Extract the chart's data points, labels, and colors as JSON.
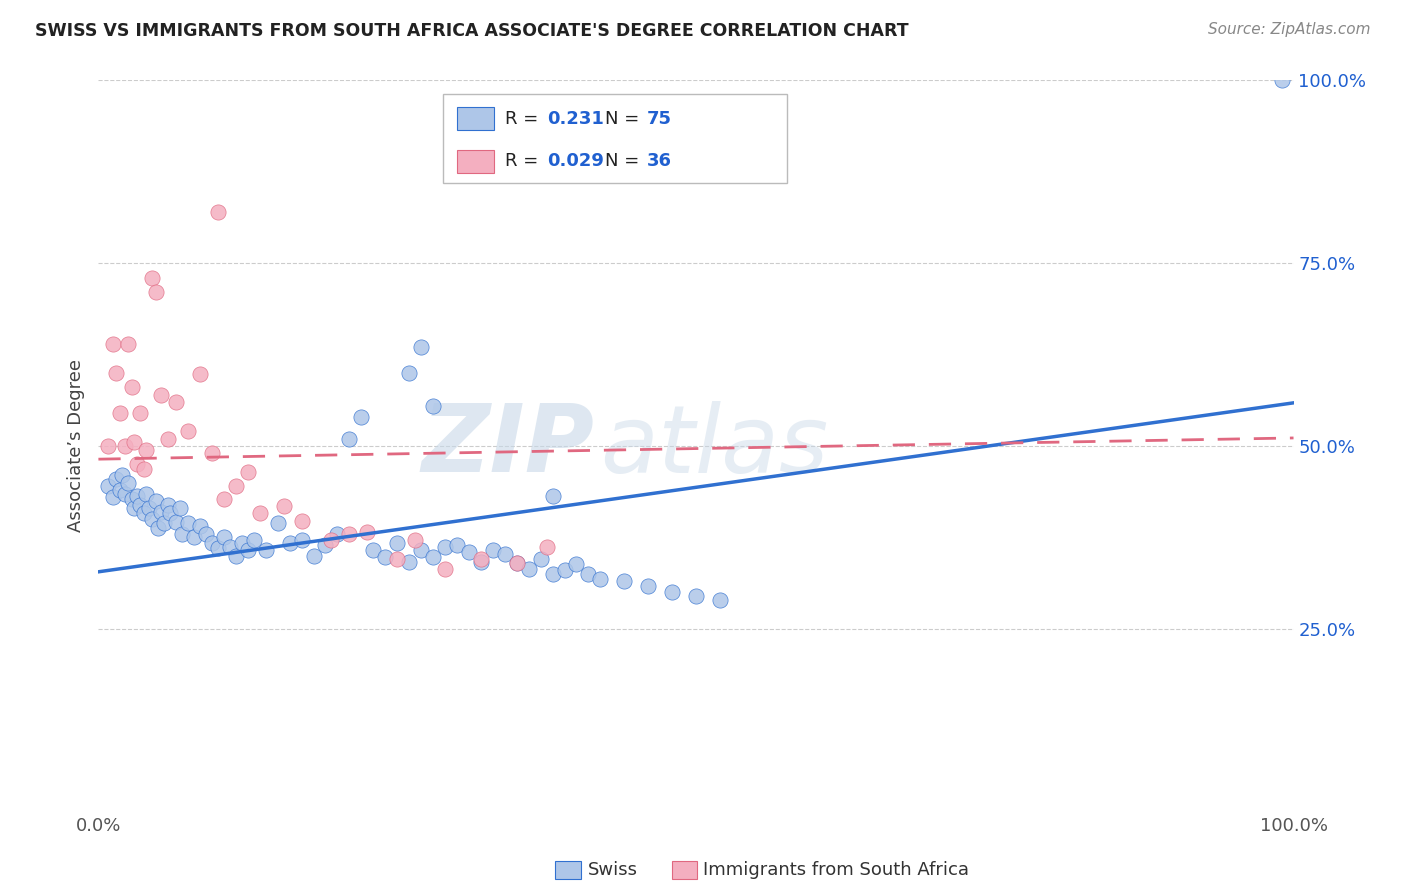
{
  "title": "SWISS VS IMMIGRANTS FROM SOUTH AFRICA ASSOCIATE'S DEGREE CORRELATION CHART",
  "source": "Source: ZipAtlas.com",
  "ylabel": "Associate’s Degree",
  "watermark_zip": "ZIP",
  "watermark_atlas": "atlas",
  "swiss_color": "#aec6e8",
  "sa_color": "#f4afc0",
  "swiss_line_color": "#3070d0",
  "sa_line_color": "#e06880",
  "blue_color": "#2060d0",
  "pink_color": "#e06880",
  "swiss_x": [
    0.008,
    0.012,
    0.015,
    0.018,
    0.02,
    0.022,
    0.025,
    0.028,
    0.03,
    0.032,
    0.035,
    0.038,
    0.04,
    0.042,
    0.045,
    0.048,
    0.05,
    0.052,
    0.055,
    0.058,
    0.06,
    0.065,
    0.068,
    0.07,
    0.075,
    0.08,
    0.085,
    0.09,
    0.095,
    0.1,
    0.105,
    0.11,
    0.115,
    0.12,
    0.125,
    0.13,
    0.14,
    0.15,
    0.16,
    0.17,
    0.18,
    0.19,
    0.2,
    0.21,
    0.22,
    0.23,
    0.24,
    0.25,
    0.26,
    0.27,
    0.28,
    0.29,
    0.3,
    0.31,
    0.32,
    0.33,
    0.34,
    0.35,
    0.36,
    0.37,
    0.38,
    0.39,
    0.4,
    0.41,
    0.42,
    0.44,
    0.46,
    0.48,
    0.5,
    0.52,
    0.26,
    0.27,
    0.28,
    0.38,
    0.99
  ],
  "swiss_y": [
    0.445,
    0.43,
    0.455,
    0.44,
    0.46,
    0.435,
    0.45,
    0.428,
    0.415,
    0.432,
    0.42,
    0.408,
    0.435,
    0.415,
    0.4,
    0.425,
    0.388,
    0.41,
    0.395,
    0.42,
    0.408,
    0.396,
    0.415,
    0.38,
    0.395,
    0.375,
    0.39,
    0.38,
    0.368,
    0.36,
    0.375,
    0.362,
    0.35,
    0.368,
    0.358,
    0.372,
    0.358,
    0.395,
    0.368,
    0.372,
    0.35,
    0.365,
    0.38,
    0.51,
    0.54,
    0.358,
    0.348,
    0.368,
    0.342,
    0.358,
    0.348,
    0.362,
    0.365,
    0.355,
    0.342,
    0.358,
    0.352,
    0.34,
    0.332,
    0.345,
    0.325,
    0.33,
    0.338,
    0.325,
    0.318,
    0.315,
    0.308,
    0.3,
    0.295,
    0.29,
    0.6,
    0.635,
    0.555,
    0.432,
    1.0
  ],
  "sa_x": [
    0.008,
    0.012,
    0.015,
    0.018,
    0.022,
    0.025,
    0.028,
    0.03,
    0.032,
    0.035,
    0.038,
    0.04,
    0.045,
    0.048,
    0.052,
    0.058,
    0.065,
    0.075,
    0.085,
    0.095,
    0.105,
    0.115,
    0.135,
    0.155,
    0.17,
    0.195,
    0.21,
    0.225,
    0.25,
    0.265,
    0.29,
    0.32,
    0.35,
    0.375,
    0.1,
    0.125
  ],
  "sa_y": [
    0.5,
    0.64,
    0.6,
    0.545,
    0.5,
    0.64,
    0.58,
    0.505,
    0.475,
    0.545,
    0.468,
    0.495,
    0.73,
    0.71,
    0.57,
    0.51,
    0.56,
    0.52,
    0.598,
    0.49,
    0.428,
    0.445,
    0.408,
    0.418,
    0.398,
    0.372,
    0.38,
    0.382,
    0.345,
    0.372,
    0.332,
    0.345,
    0.34,
    0.362,
    0.82,
    0.465
  ],
  "swiss_slope": 0.231,
  "swiss_intercept": 0.328,
  "sa_slope": 0.029,
  "sa_intercept": 0.482,
  "xlim": [
    0.0,
    1.0
  ],
  "ylim": [
    0.0,
    1.0
  ],
  "yticks": [
    0.25,
    0.5,
    0.75,
    1.0
  ],
  "ytick_labels": [
    "25.0%",
    "50.0%",
    "75.0%",
    "100.0%"
  ],
  "xtick_labels": [
    "0.0%",
    "100.0%"
  ]
}
